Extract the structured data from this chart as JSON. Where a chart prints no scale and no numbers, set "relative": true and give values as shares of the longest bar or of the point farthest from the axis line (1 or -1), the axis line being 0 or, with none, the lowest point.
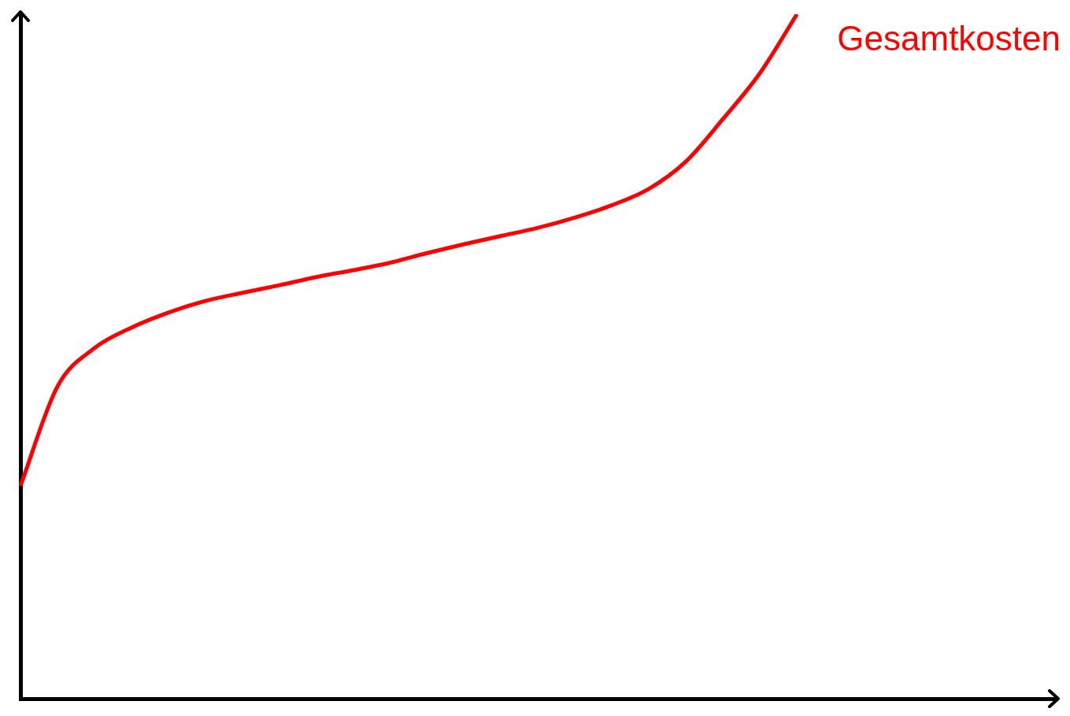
{
  "chart_data": {
    "type": "line",
    "relative": true,
    "legend": false,
    "marker": "none",
    "categories": [
      null,
      null,
      null,
      null,
      null,
      null,
      null,
      null,
      null,
      null,
      null,
      null,
      null,
      null,
      null,
      null,
      null,
      null,
      null,
      null,
      null,
      null,
      null,
      null,
      null,
      null,
      null,
      null,
      null
    ],
    "series": [
      {
        "name": "Gesamtkosten",
        "color": "#ff0000",
        "values": [
          0.311,
          0.456,
          0.512,
          0.542,
          0.564,
          0.581,
          0.593,
          0.604,
          0.616,
          0.626,
          0.637,
          0.651,
          0.664,
          0.676,
          0.688,
          0.703,
          0.721,
          0.745,
          0.785,
          0.847,
          0.914,
          1,
          null,
          null,
          null,
          null,
          null,
          null,
          null
        ]
      }
    ]
  }
}
